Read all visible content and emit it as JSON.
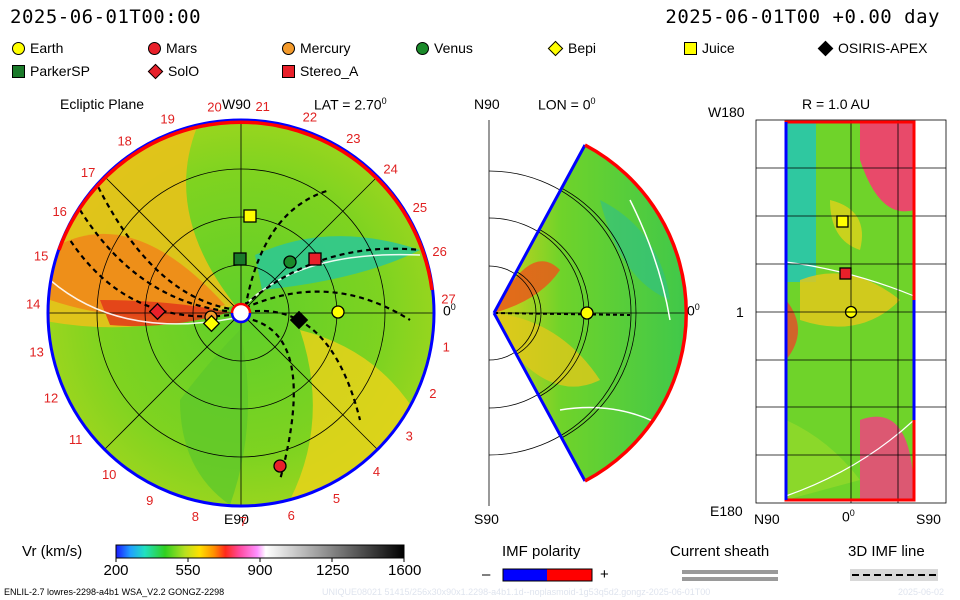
{
  "header": {
    "datetime": "2025-06-01T00:00",
    "elapsed": "2025-06-01T00 +0.00 day"
  },
  "legend": [
    {
      "name": "Earth",
      "shape": "circle",
      "color": "#ffff00"
    },
    {
      "name": "Mars",
      "shape": "circle",
      "color": "#e8202a"
    },
    {
      "name": "Mercury",
      "shape": "circle",
      "color": "#f39a2b"
    },
    {
      "name": "Venus",
      "shape": "circle",
      "color": "#1a8a2a"
    },
    {
      "name": "Bepi",
      "shape": "diamond",
      "color": "#ffff00"
    },
    {
      "name": "Juice",
      "shape": "square",
      "color": "#ffff00"
    },
    {
      "name": "OSIRIS-APEX",
      "shape": "diamond",
      "color": "#000000"
    },
    {
      "name": "ParkerSP",
      "shape": "square",
      "color": "#1a7a2a"
    },
    {
      "name": "SolO",
      "shape": "diamond",
      "color": "#e8202a"
    },
    {
      "name": "Stereo_A",
      "shape": "square",
      "color": "#e8202a"
    }
  ],
  "ecliptic": {
    "title": "Ecliptic Plane",
    "lat_label": "LAT = 2.70",
    "lat_sup": "0",
    "top_label": "W90",
    "bottom_label": "E90",
    "right_label": "0",
    "right_sup": "0",
    "carrington": [
      "1",
      "2",
      "3",
      "4",
      "5",
      "6",
      "7",
      "8",
      "9",
      "10",
      "11",
      "12",
      "13",
      "14",
      "15",
      "16",
      "17",
      "18",
      "19",
      "20",
      "21",
      "22",
      "23",
      "24",
      "25",
      "26",
      "27"
    ]
  },
  "meridional": {
    "top_left": "N90",
    "title": "LON = 0",
    "title_sup": "0",
    "bottom_left": "S90",
    "right_label": "0",
    "right_sup": "0"
  },
  "latlon": {
    "title": "R = 1.0 AU",
    "top_left": "W180",
    "mid_left": "1",
    "bottom_left": "E180",
    "bottom_n": "N90",
    "bottom_mid": "0",
    "bottom_mid_sup": "0",
    "bottom_s": "S90"
  },
  "colorbar": {
    "label": "Vr (km/s)",
    "ticks": [
      "200",
      "550",
      "900",
      "1250",
      "1600"
    ],
    "min": 200,
    "max": 1600
  },
  "imf": {
    "title": "IMF polarity",
    "minus": "–",
    "plus": "+",
    "negative_color": "#0000ff",
    "positive_color": "#ff0000"
  },
  "sheath": {
    "title": "Current sheath"
  },
  "imf3d": {
    "title": "3D IMF line"
  },
  "footer": {
    "model": "ENLIL-2.7 lowres-2298-a4b1 WSA_V2.2 GONGZ-2298",
    "run_id": "UNIQUE08021 51415/256x30x90x1.2298-a4b1.1d--noplasmoid-1g53q5d2.gongz-2025-06-01T00",
    "date_tail": "2025-06-02"
  }
}
